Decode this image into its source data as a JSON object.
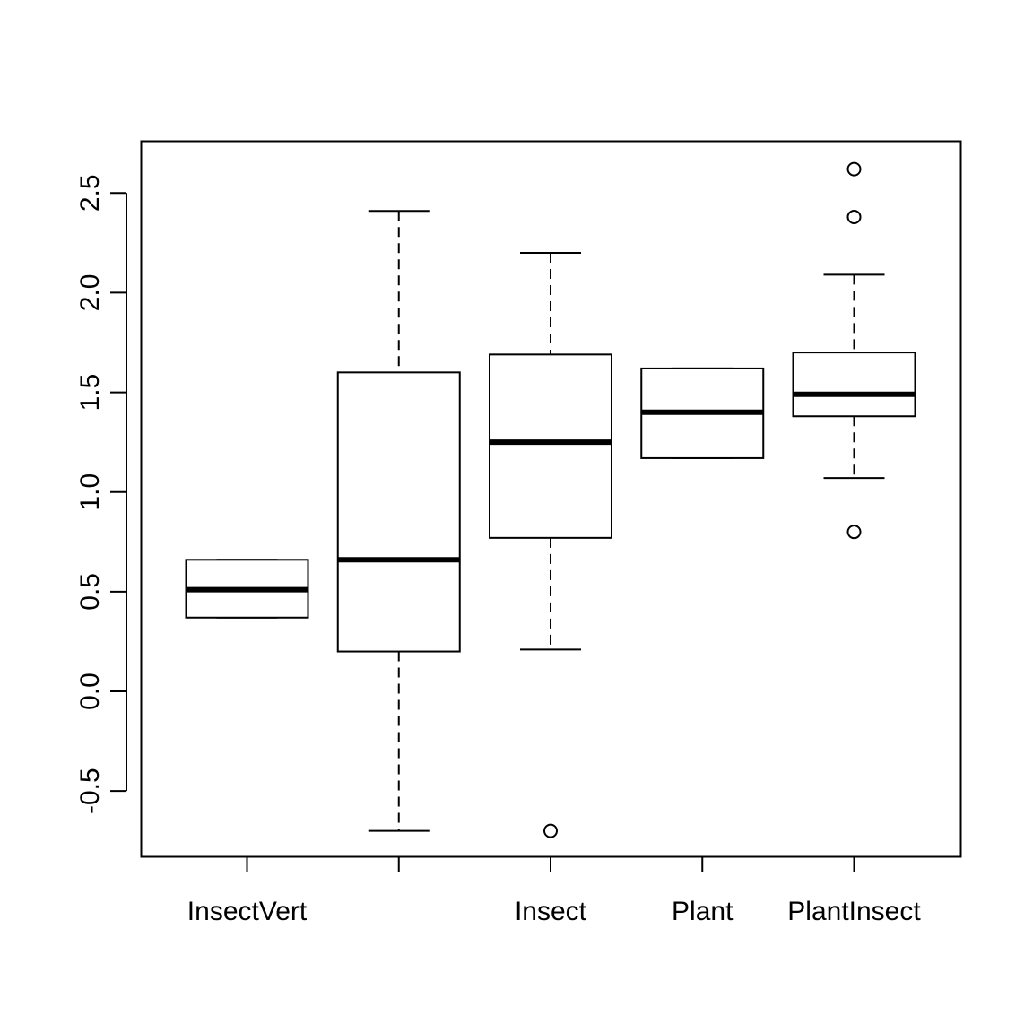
{
  "chart_data": {
    "type": "boxplot",
    "title": "",
    "xlabel": "",
    "ylabel": "",
    "ylim": [
      -0.83,
      2.76
    ],
    "yticks": [
      -0.5,
      0.0,
      0.5,
      1.0,
      1.5,
      2.0,
      2.5
    ],
    "ytick_labels": [
      "-0.5",
      "0.0",
      "0.5",
      "1.0",
      "1.5",
      "2.0",
      "2.5"
    ],
    "categories": [
      "InsectVert",
      "",
      "Insect",
      "Plant",
      "PlantInsect"
    ],
    "boxes": [
      {
        "category": "InsectVert",
        "whisker_low": 0.37,
        "q1": 0.37,
        "median": 0.51,
        "q3": 0.66,
        "whisker_high": 0.66,
        "outliers": []
      },
      {
        "category": "",
        "whisker_low": -0.7,
        "q1": 0.2,
        "median": 0.66,
        "q3": 1.6,
        "whisker_high": 2.41,
        "outliers": []
      },
      {
        "category": "Insect",
        "whisker_low": 0.21,
        "q1": 0.77,
        "median": 1.25,
        "q3": 1.69,
        "whisker_high": 2.2,
        "outliers": [
          -0.7
        ]
      },
      {
        "category": "Plant",
        "whisker_low": 1.17,
        "q1": 1.17,
        "median": 1.4,
        "q3": 1.62,
        "whisker_high": 1.62,
        "outliers": []
      },
      {
        "category": "PlantInsect",
        "whisker_low": 1.07,
        "q1": 1.38,
        "median": 1.49,
        "q3": 1.7,
        "whisker_high": 2.09,
        "outliers": [
          0.8,
          2.38,
          2.62
        ]
      }
    ],
    "grid": false,
    "legend": "none",
    "colors": {
      "stroke": "#000000",
      "fill": "#ffffff",
      "background": "#ffffff"
    }
  }
}
